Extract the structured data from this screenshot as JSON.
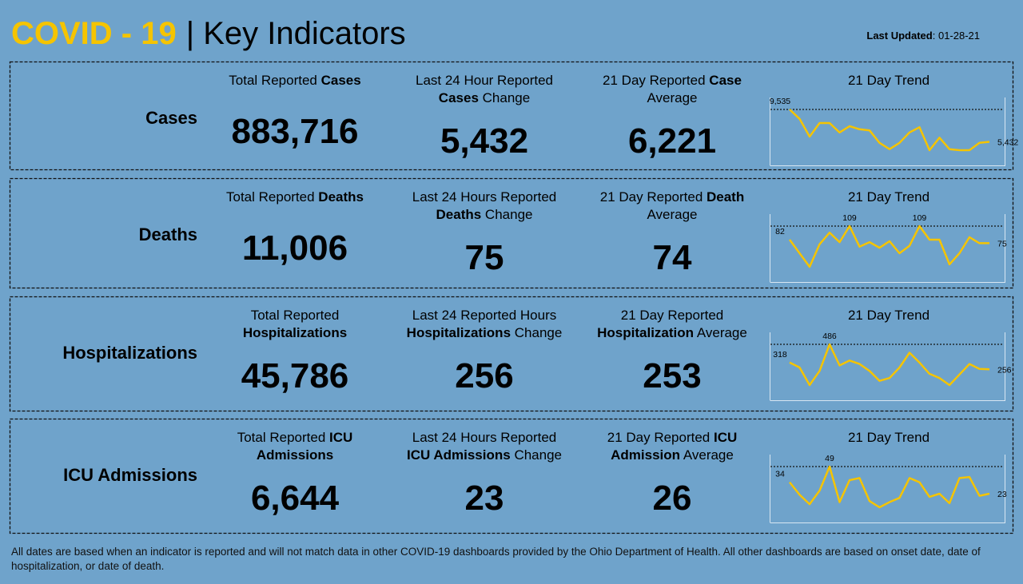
{
  "header": {
    "title_highlight": "COVID - 19",
    "title_rest": "| Key Indicators",
    "updated_label": "Last Updated",
    "updated_value": ": 01-28-21"
  },
  "rows": [
    {
      "label": "Cases",
      "columns": [
        {
          "heading": [
            [
              {
                "text": "Total Reported "
              },
              {
                "text": "Cases",
                "bold": true
              }
            ]
          ],
          "value": "883,716"
        },
        {
          "heading": [
            [
              {
                "text": "Last 24 Hour Reported"
              }
            ],
            [
              {
                "text": "Cases",
                "bold": true
              },
              {
                "text": " Change"
              }
            ]
          ],
          "value": "5,432"
        },
        {
          "heading": [
            [
              {
                "text": "21 Day Reported "
              },
              {
                "text": "Case",
                "bold": true
              }
            ],
            [
              {
                "text": "Average"
              }
            ]
          ],
          "value": "6,221"
        }
      ],
      "trend": {
        "title": "21 Day Trend",
        "values": [
          9535,
          8343,
          6093,
          7814,
          7814,
          6622,
          7417,
          7019,
          6887,
          5298,
          4504,
          5298,
          6622,
          7284,
          4371,
          5960,
          4504,
          4371,
          4371,
          5298,
          5432
        ],
        "value_labels": [
          "9,535",
          null,
          null,
          null,
          null,
          null,
          null,
          null,
          null,
          null,
          null,
          null,
          null,
          null,
          null,
          null,
          null,
          null,
          null,
          null,
          "5,432"
        ]
      }
    },
    {
      "label": "Deaths",
      "columns": [
        {
          "heading": [
            [
              {
                "text": "Total Reported "
              },
              {
                "text": "Deaths",
                "bold": true
              }
            ]
          ],
          "value": "11,006"
        },
        {
          "heading": [
            [
              {
                "text": "Last 24 Hours Reported"
              }
            ],
            [
              {
                "text": "Deaths",
                "bold": true
              },
              {
                "text": " Change"
              }
            ]
          ],
          "value": "75"
        },
        {
          "heading": [
            [
              {
                "text": "21 Day Reported "
              },
              {
                "text": "Death",
                "bold": true
              }
            ],
            [
              {
                "text": "Average"
              }
            ]
          ],
          "value": "74"
        }
      ],
      "trend": {
        "title": "21 Day Trend",
        "values": [
          82,
          55,
          28,
          73,
          96,
          77,
          109,
          68,
          77,
          66,
          79,
          55,
          70,
          109,
          82,
          82,
          33,
          55,
          87,
          75,
          75
        ],
        "value_labels": [
          "82",
          null,
          null,
          null,
          null,
          null,
          "109",
          null,
          null,
          null,
          null,
          null,
          null,
          "109",
          null,
          null,
          null,
          null,
          null,
          null,
          "75"
        ]
      }
    },
    {
      "label": "Hospitalizations",
      "columns": [
        {
          "heading": [
            [
              {
                "text": "Total Reported"
              }
            ],
            [
              {
                "text": "Hospitalizations",
                "bold": true
              }
            ]
          ],
          "value": "45,786"
        },
        {
          "heading": [
            [
              {
                "text": "Last 24 Reported Hours"
              }
            ],
            [
              {
                "text": "Hospitalizations",
                "bold": true
              },
              {
                "text": " Change"
              }
            ]
          ],
          "value": "256"
        },
        {
          "heading": [
            [
              {
                "text": "21 Day Reported"
              }
            ],
            [
              {
                "text": "Hospitalization",
                "bold": true
              },
              {
                "text": " Average"
              }
            ]
          ],
          "value": "253"
        }
      ],
      "trend": {
        "title": "21 Day Trend",
        "values": [
          318,
          273,
          111,
          241,
          486,
          292,
          337,
          305,
          241,
          150,
          176,
          273,
          409,
          318,
          215,
          176,
          111,
          208,
          305,
          260,
          256
        ],
        "value_labels": [
          "318",
          null,
          null,
          null,
          "486",
          null,
          null,
          null,
          null,
          null,
          null,
          null,
          null,
          null,
          null,
          null,
          null,
          null,
          null,
          null,
          "256"
        ]
      }
    },
    {
      "label": "ICU Admissions",
      "columns": [
        {
          "heading": [
            [
              {
                "text": "Total Reported "
              },
              {
                "text": "ICU",
                "bold": true
              }
            ],
            [
              {
                "text": "Admissions",
                "bold": true
              }
            ]
          ],
          "value": "6,644"
        },
        {
          "heading": [
            [
              {
                "text": "Last 24 Hours Reported"
              }
            ],
            [
              {
                "text": "ICU Admissions",
                "bold": true
              },
              {
                "text": " Change"
              }
            ]
          ],
          "value": "23"
        },
        {
          "heading": [
            [
              {
                "text": "21 Day Reported "
              },
              {
                "text": "ICU",
                "bold": true
              }
            ],
            [
              {
                "text": "Admission",
                "bold": true
              },
              {
                "text": " Average"
              }
            ]
          ],
          "value": "26"
        }
      ],
      "trend": {
        "title": "21 Day Trend",
        "values": [
          34,
          22,
          13,
          26,
          49,
          15,
          36,
          38,
          16,
          10,
          15,
          19,
          38,
          34,
          20,
          23,
          14,
          38,
          39,
          21,
          23
        ],
        "value_labels": [
          "34",
          null,
          null,
          null,
          "49",
          null,
          null,
          null,
          null,
          null,
          null,
          null,
          null,
          null,
          null,
          null,
          null,
          null,
          null,
          null,
          "23"
        ]
      }
    }
  ],
  "footer": "All dates are based when an indicator is reported and will not match data in other COVID-19 dashboards provided by the Ohio Department of Health. All other dashboards are based on onset date, date of hospitalization, or date of death."
}
